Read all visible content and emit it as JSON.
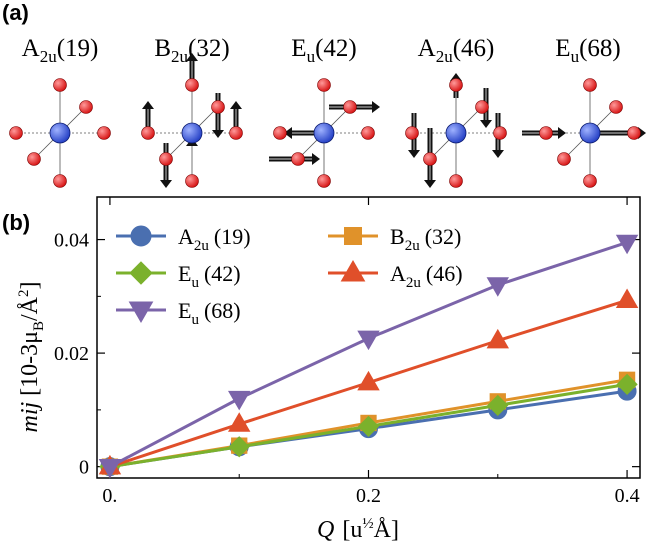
{
  "panel_a": {
    "label": "(a)",
    "modes": [
      {
        "symbol": "A",
        "sub": "2u",
        "freq": "(19)"
      },
      {
        "symbol": "B",
        "sub": "2u",
        "freq": "(32)"
      },
      {
        "symbol": "E",
        "sub": "u",
        "freq": "(42)"
      },
      {
        "symbol": "A",
        "sub": "2u",
        "freq": "(46)"
      },
      {
        "symbol": "E",
        "sub": "u",
        "freq": "(68)"
      }
    ],
    "colors": {
      "center_atom": "#2a45c8",
      "ligand_atom": "#d81818",
      "arrow": "#111111"
    }
  },
  "chart_data": {
    "type": "line",
    "panel_label": "(b)",
    "xlabel_italic": "Q",
    "xlabel_unit": "[u",
    "xlabel_sup": "½",
    "xlabel_end": "Å]",
    "ylabel_italic": "mij",
    "ylabel_pre": " [10-3μ",
    "ylabel_sub": "B",
    "ylabel_mid": "/Å",
    "ylabel_sup": "2",
    "ylabel_end": "]",
    "xlim": [
      -0.01,
      0.41
    ],
    "ylim": [
      -0.002,
      0.0475
    ],
    "xticks": [
      0,
      0.2,
      0.4
    ],
    "xtick_labels": [
      "0.",
      "0.2",
      "0.4"
    ],
    "yticks": [
      0,
      0.02,
      0.04
    ],
    "ytick_labels": [
      "0",
      "0.02",
      "0.04"
    ],
    "x": [
      0,
      0.1,
      0.2,
      0.3,
      0.4
    ],
    "series": [
      {
        "name": "A",
        "sub": "2u",
        "freq": "(19)",
        "marker": "circle",
        "color": "#4a6fb0",
        "values": [
          0,
          0.0035,
          0.0067,
          0.01,
          0.0133
        ]
      },
      {
        "name": "B",
        "sub": "2u",
        "freq": "(32)",
        "marker": "square",
        "color": "#e0922a",
        "values": [
          0,
          0.0037,
          0.0077,
          0.0115,
          0.0153
        ]
      },
      {
        "name": "E",
        "sub": "u",
        "freq": "(42)",
        "marker": "diamond",
        "color": "#7bb12c",
        "values": [
          0,
          0.0035,
          0.0071,
          0.0108,
          0.0145
        ]
      },
      {
        "name": "A",
        "sub": "2u",
        "freq": "(46)",
        "marker": "triangle-up",
        "color": "#e04f2a",
        "values": [
          0,
          0.0075,
          0.0148,
          0.0222,
          0.0293
        ]
      },
      {
        "name": "E",
        "sub": "u",
        "freq": "(68)",
        "marker": "triangle-down",
        "color": "#7b64a9",
        "values": [
          0,
          0.012,
          0.0226,
          0.032,
          0.0395
        ]
      }
    ],
    "legend_order": [
      0,
      1,
      2,
      3,
      4
    ]
  }
}
